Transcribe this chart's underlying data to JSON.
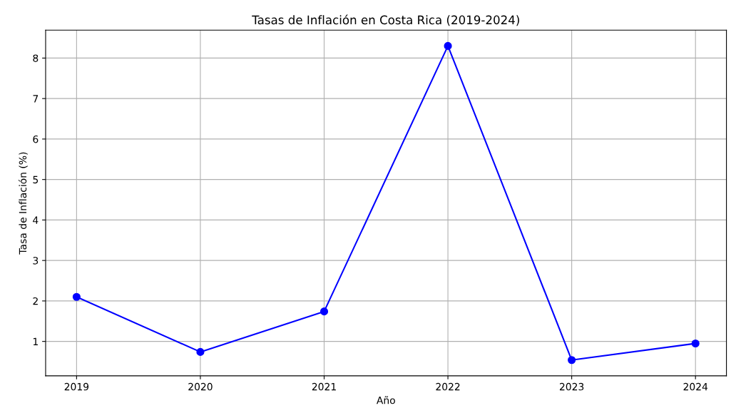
{
  "chart_data": {
    "type": "line",
    "title": "Tasas de Inflación en Costa Rica (2019-2024)",
    "xlabel": "Año",
    "ylabel": "Tasa de Inflación (%)",
    "x": [
      2019,
      2020,
      2021,
      2022,
      2023,
      2024
    ],
    "series": [
      {
        "color": "#0000ff",
        "values": [
          2.1,
          0.74,
          1.74,
          8.3,
          0.54,
          0.95
        ]
      }
    ],
    "xlim": [
      2018.75,
      2024.25
    ],
    "xticks": [
      2019,
      2020,
      2021,
      2022,
      2023,
      2024
    ],
    "ylim": [
      0.15,
      8.69
    ],
    "yticks": [
      1,
      2,
      3,
      4,
      5,
      6,
      7,
      8
    ],
    "grid": true,
    "marker": "circle",
    "line_style": "solid"
  }
}
